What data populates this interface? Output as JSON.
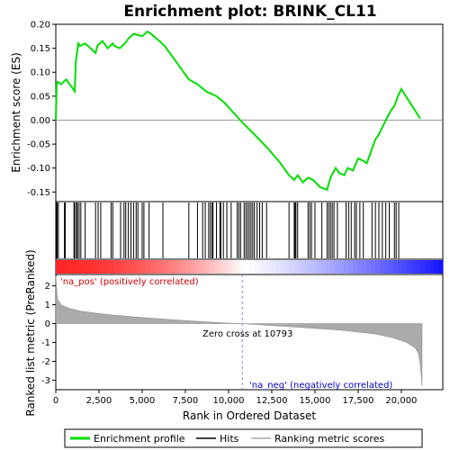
{
  "chart_data": {
    "type": "line",
    "title": "Enrichment plot: BRINK_CL11",
    "xlabel": "Rank in Ordered Dataset",
    "ylabel_top": "Enrichment score (ES)",
    "ylabel_bottom": "Ranked list metric (PreRanked)",
    "x_range": [
      0,
      22400
    ],
    "x_ticks": [
      0,
      2500,
      5000,
      7500,
      10000,
      12500,
      15000,
      17500,
      20000
    ],
    "x_tick_labels": [
      "0",
      "2,500",
      "5,000",
      "7,500",
      "10,000",
      "12,500",
      "15,000",
      "17,500",
      "20,000"
    ],
    "es_range": [
      -0.17,
      0.2
    ],
    "es_ticks": [
      0.2,
      0.15,
      0.1,
      0.05,
      0.0,
      -0.05,
      -0.1,
      -0.15
    ],
    "es_tick_labels": [
      "0.20",
      "0.15",
      "0.10",
      "0.05",
      "0.00",
      "-0.05",
      "-0.10",
      "-0.15"
    ],
    "metric_range": [
      -3.5,
      2.6
    ],
    "metric_ticks": [
      2,
      1,
      0,
      -1,
      -2,
      -3
    ],
    "metric_tick_labels": [
      "2",
      "1",
      "0",
      "-1",
      "-2",
      "-3"
    ],
    "zero_cross_rank": 10793,
    "zero_cross_label": "Zero cross at 10793",
    "pos_label": "'na_pos' (positively correlated)",
    "neg_label": "'na_neg' (negatively correlated)",
    "enrichment_profile": {
      "x": [
        0,
        50,
        120,
        300,
        600,
        1100,
        1150,
        1300,
        1400,
        1700,
        2300,
        2400,
        2700,
        3000,
        3300,
        3400,
        3700,
        4000,
        4200,
        4500,
        5000,
        5300,
        5500,
        6000,
        6300,
        7000,
        7700,
        8200,
        8700,
        9300,
        9800,
        10300,
        10793,
        11500,
        12300,
        13000,
        13500,
        13800,
        14000,
        14300,
        14600,
        14900,
        15300,
        15700,
        15900,
        16200,
        16400,
        16700,
        16900,
        17200,
        17500,
        17800,
        18000,
        18300,
        18500,
        18700,
        18900,
        19100,
        19400,
        19600,
        19800,
        20000,
        21100
      ],
      "y": [
        0.0,
        0.075,
        0.08,
        0.075,
        0.085,
        0.06,
        0.12,
        0.16,
        0.155,
        0.16,
        0.14,
        0.155,
        0.165,
        0.15,
        0.16,
        0.155,
        0.15,
        0.16,
        0.17,
        0.18,
        0.175,
        0.185,
        0.18,
        0.165,
        0.155,
        0.12,
        0.085,
        0.075,
        0.06,
        0.05,
        0.035,
        0.015,
        -0.005,
        -0.03,
        -0.06,
        -0.09,
        -0.115,
        -0.125,
        -0.115,
        -0.13,
        -0.12,
        -0.125,
        -0.14,
        -0.145,
        -0.12,
        -0.1,
        -0.11,
        -0.115,
        -0.1,
        -0.105,
        -0.08,
        -0.085,
        -0.09,
        -0.06,
        -0.04,
        -0.03,
        -0.015,
        0.0,
        0.02,
        0.03,
        0.05,
        0.065,
        0.003
      ]
    },
    "hit_ranks": [
      30,
      80,
      150,
      500,
      550,
      1050,
      1100,
      1200,
      1250,
      1350,
      1450,
      1700,
      2300,
      2450,
      2600,
      3200,
      3300,
      3750,
      3950,
      4050,
      4200,
      4350,
      4500,
      4650,
      4750,
      5000,
      5100,
      5400,
      6200,
      7700,
      8200,
      8500,
      8650,
      8850,
      8950,
      9050,
      9100,
      9300,
      9500,
      9550,
      9700,
      9900,
      10150,
      10500,
      10600,
      10700,
      10900,
      11000,
      11100,
      11200,
      11300,
      11400,
      11500,
      11650,
      11800,
      11950,
      12200,
      13500,
      13800,
      13850,
      13900,
      14000,
      14600,
      14700,
      14800,
      15000,
      15400,
      15700,
      15800,
      15900,
      16000,
      16100,
      16300,
      16800,
      16950,
      17100,
      17300,
      17400,
      17600,
      17800,
      18300,
      18500,
      18700,
      18900,
      19100,
      19300,
      19600,
      19700,
      19850
    ],
    "metric_curve": {
      "x": [
        0,
        100,
        300,
        800,
        1500,
        3000,
        5000,
        7500,
        9500,
        10793,
        12500,
        14500,
        16500,
        18500,
        19500,
        20300,
        20800,
        21000,
        21100,
        21200
      ],
      "y": [
        2.5,
        1.3,
        1.0,
        0.8,
        0.65,
        0.48,
        0.32,
        0.16,
        0.05,
        0.0,
        -0.1,
        -0.22,
        -0.35,
        -0.55,
        -0.75,
        -1.0,
        -1.3,
        -1.6,
        -2.2,
        -3.3
      ]
    },
    "legend": [
      "Enrichment profile",
      "Hits",
      "Ranking metric scores"
    ],
    "colors": {
      "profile": "#00dd00",
      "hits": "#000000",
      "metric": "#aaaaaa",
      "zero_line": "#8888cc",
      "pos": "#ff0000",
      "neg": "#0000ff"
    }
  }
}
